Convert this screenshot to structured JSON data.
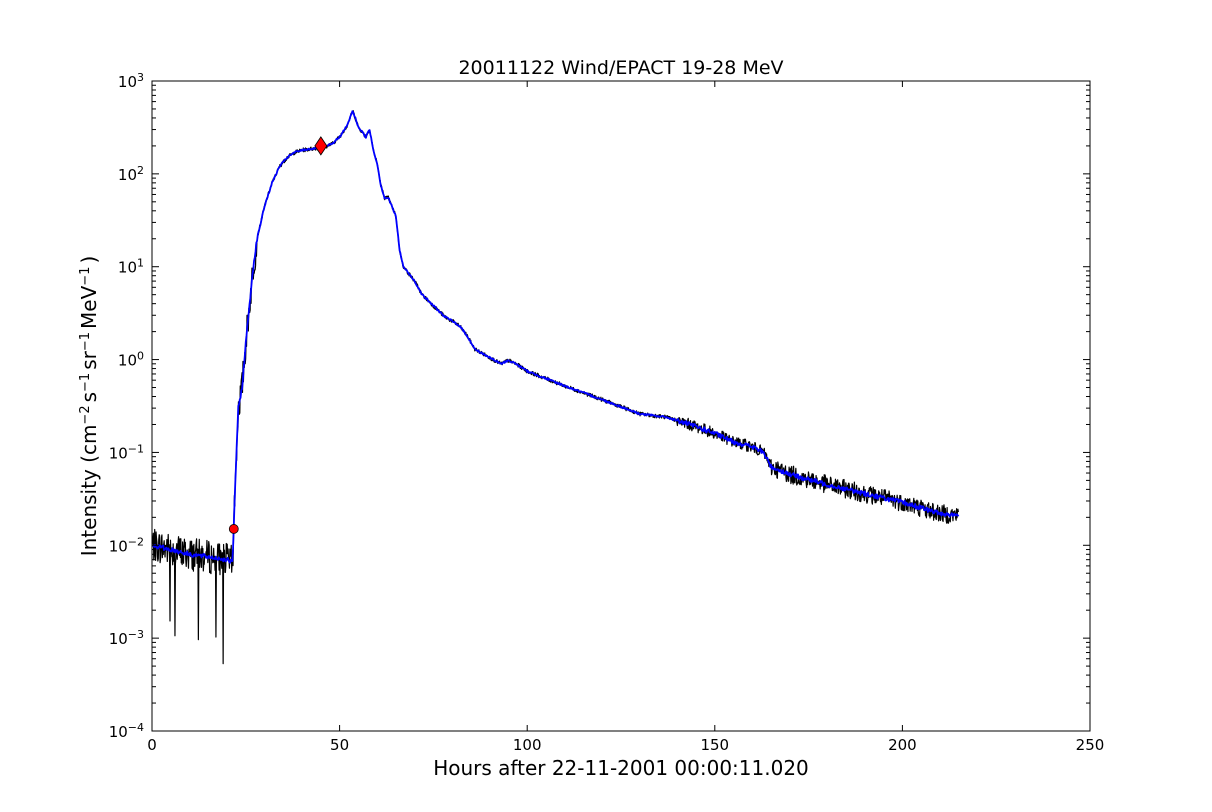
{
  "chart_data": {
    "type": "line",
    "title": "20011122 Wind/EPACT 19-28 MeV",
    "xlabel": "Hours after 22-11-2001 00:00:11.020",
    "ylabel": "Intensity (cm⁻² s⁻¹ sr⁻¹ MeV⁻¹)",
    "ylabel_parts": {
      "lead": "Intensity (cm",
      "s1": "−2",
      "t1": "s",
      "s2": "−1",
      "t2": "sr",
      "s3": "−1",
      "t3": "MeV",
      "s4": "−1",
      "tail": ")"
    },
    "xlim": [
      0,
      250
    ],
    "ylim": [
      0.0001,
      1000
    ],
    "yscale": "log",
    "xticks": [
      0,
      50,
      100,
      150,
      200,
      250
    ],
    "xtick_labels": [
      "0",
      "50",
      "100",
      "150",
      "200",
      "250"
    ],
    "yticks": [
      0.0001,
      0.001,
      0.01,
      0.1,
      1,
      10,
      100,
      1000
    ],
    "ytick_labels": [
      {
        "base": "10",
        "exp": "−4"
      },
      {
        "base": "10",
        "exp": "−3"
      },
      {
        "base": "10",
        "exp": "−2"
      },
      {
        "base": "10",
        "exp": "−1"
      },
      {
        "base": "10",
        "exp": "0"
      },
      {
        "base": "10",
        "exp": "1"
      },
      {
        "base": "10",
        "exp": "2"
      },
      {
        "base": "10",
        "exp": "3"
      }
    ],
    "grid": false,
    "legend": "none",
    "series": [
      {
        "style": "raw",
        "color": "#000000",
        "description_points": [
          [
            0,
            0.01
          ],
          [
            5,
            0.009
          ],
          [
            10,
            0.008
          ],
          [
            15,
            0.0075
          ],
          [
            20,
            0.007
          ],
          [
            21.5,
            0.0065
          ],
          [
            22,
            0.03
          ],
          [
            23,
            0.3
          ],
          [
            24,
            0.5
          ],
          [
            25,
            1.5
          ],
          [
            26,
            4
          ],
          [
            27,
            10
          ],
          [
            28,
            20
          ],
          [
            30,
            45
          ],
          [
            32,
            80
          ],
          [
            34,
            120
          ],
          [
            36,
            150
          ],
          [
            38,
            170
          ],
          [
            40,
            180
          ],
          [
            42,
            185
          ],
          [
            44,
            190
          ],
          [
            46,
            195
          ],
          [
            48,
            210
          ],
          [
            50,
            250
          ],
          [
            52,
            330
          ],
          [
            53.5,
            480
          ],
          [
            55,
            320
          ],
          [
            57,
            250
          ],
          [
            58,
            300
          ],
          [
            59,
            180
          ],
          [
            60,
            130
          ],
          [
            61,
            75
          ],
          [
            62,
            55
          ],
          [
            63,
            55
          ],
          [
            65,
            35
          ],
          [
            66,
            15
          ],
          [
            67,
            10
          ],
          [
            70,
            7
          ],
          [
            72,
            5
          ],
          [
            75,
            3.8
          ],
          [
            78,
            2.9
          ],
          [
            80,
            2.6
          ],
          [
            82,
            2.3
          ],
          [
            84,
            1.8
          ],
          [
            86,
            1.3
          ],
          [
            90,
            1.05
          ],
          [
            93,
            0.9
          ],
          [
            95,
            0.98
          ],
          [
            97,
            0.9
          ],
          [
            100,
            0.75
          ],
          [
            110,
            0.52
          ],
          [
            120,
            0.37
          ],
          [
            130,
            0.26
          ],
          [
            137,
            0.24
          ],
          [
            140,
            0.22
          ],
          [
            145,
            0.19
          ],
          [
            150,
            0.16
          ],
          [
            155,
            0.13
          ],
          [
            160,
            0.115
          ],
          [
            163,
            0.1
          ],
          [
            165,
            0.07
          ],
          [
            170,
            0.058
          ],
          [
            180,
            0.045
          ],
          [
            190,
            0.036
          ],
          [
            200,
            0.029
          ],
          [
            210,
            0.022
          ],
          [
            215,
            0.021
          ]
        ],
        "noise_dex": 0.18
      },
      {
        "style": "smoothed",
        "color": "#0000ff",
        "description_points": [
          [
            0,
            0.01
          ],
          [
            5,
            0.009
          ],
          [
            10,
            0.008
          ],
          [
            15,
            0.0075
          ],
          [
            20,
            0.007
          ],
          [
            21.5,
            0.0065
          ],
          [
            22,
            0.03
          ],
          [
            23,
            0.3
          ],
          [
            24,
            0.5
          ],
          [
            25,
            1.5
          ],
          [
            26,
            4
          ],
          [
            27,
            10
          ],
          [
            28,
            20
          ],
          [
            30,
            45
          ],
          [
            32,
            80
          ],
          [
            34,
            120
          ],
          [
            36,
            150
          ],
          [
            38,
            170
          ],
          [
            40,
            180
          ],
          [
            42,
            185
          ],
          [
            44,
            190
          ],
          [
            46,
            195
          ],
          [
            48,
            210
          ],
          [
            50,
            250
          ],
          [
            52,
            330
          ],
          [
            53.5,
            480
          ],
          [
            55,
            320
          ],
          [
            57,
            250
          ],
          [
            58,
            300
          ],
          [
            59,
            180
          ],
          [
            60,
            130
          ],
          [
            61,
            75
          ],
          [
            62,
            55
          ],
          [
            63,
            55
          ],
          [
            65,
            35
          ],
          [
            66,
            15
          ],
          [
            67,
            10
          ],
          [
            70,
            7
          ],
          [
            72,
            5
          ],
          [
            75,
            3.8
          ],
          [
            78,
            2.9
          ],
          [
            80,
            2.6
          ],
          [
            82,
            2.3
          ],
          [
            84,
            1.8
          ],
          [
            86,
            1.3
          ],
          [
            90,
            1.05
          ],
          [
            93,
            0.9
          ],
          [
            95,
            0.98
          ],
          [
            97,
            0.9
          ],
          [
            100,
            0.75
          ],
          [
            110,
            0.52
          ],
          [
            120,
            0.37
          ],
          [
            130,
            0.26
          ],
          [
            137,
            0.24
          ],
          [
            140,
            0.22
          ],
          [
            145,
            0.19
          ],
          [
            150,
            0.16
          ],
          [
            155,
            0.13
          ],
          [
            160,
            0.115
          ],
          [
            163,
            0.1
          ],
          [
            165,
            0.07
          ],
          [
            170,
            0.058
          ],
          [
            180,
            0.045
          ],
          [
            190,
            0.036
          ],
          [
            200,
            0.029
          ],
          [
            210,
            0.022
          ],
          [
            215,
            0.021
          ]
        ]
      }
    ],
    "markers": [
      {
        "shape": "circle",
        "x": 21.8,
        "y": 0.015,
        "color": "#ff0000"
      },
      {
        "shape": "diamond",
        "x": 45,
        "y": 200,
        "color": "#ff0000"
      }
    ]
  }
}
